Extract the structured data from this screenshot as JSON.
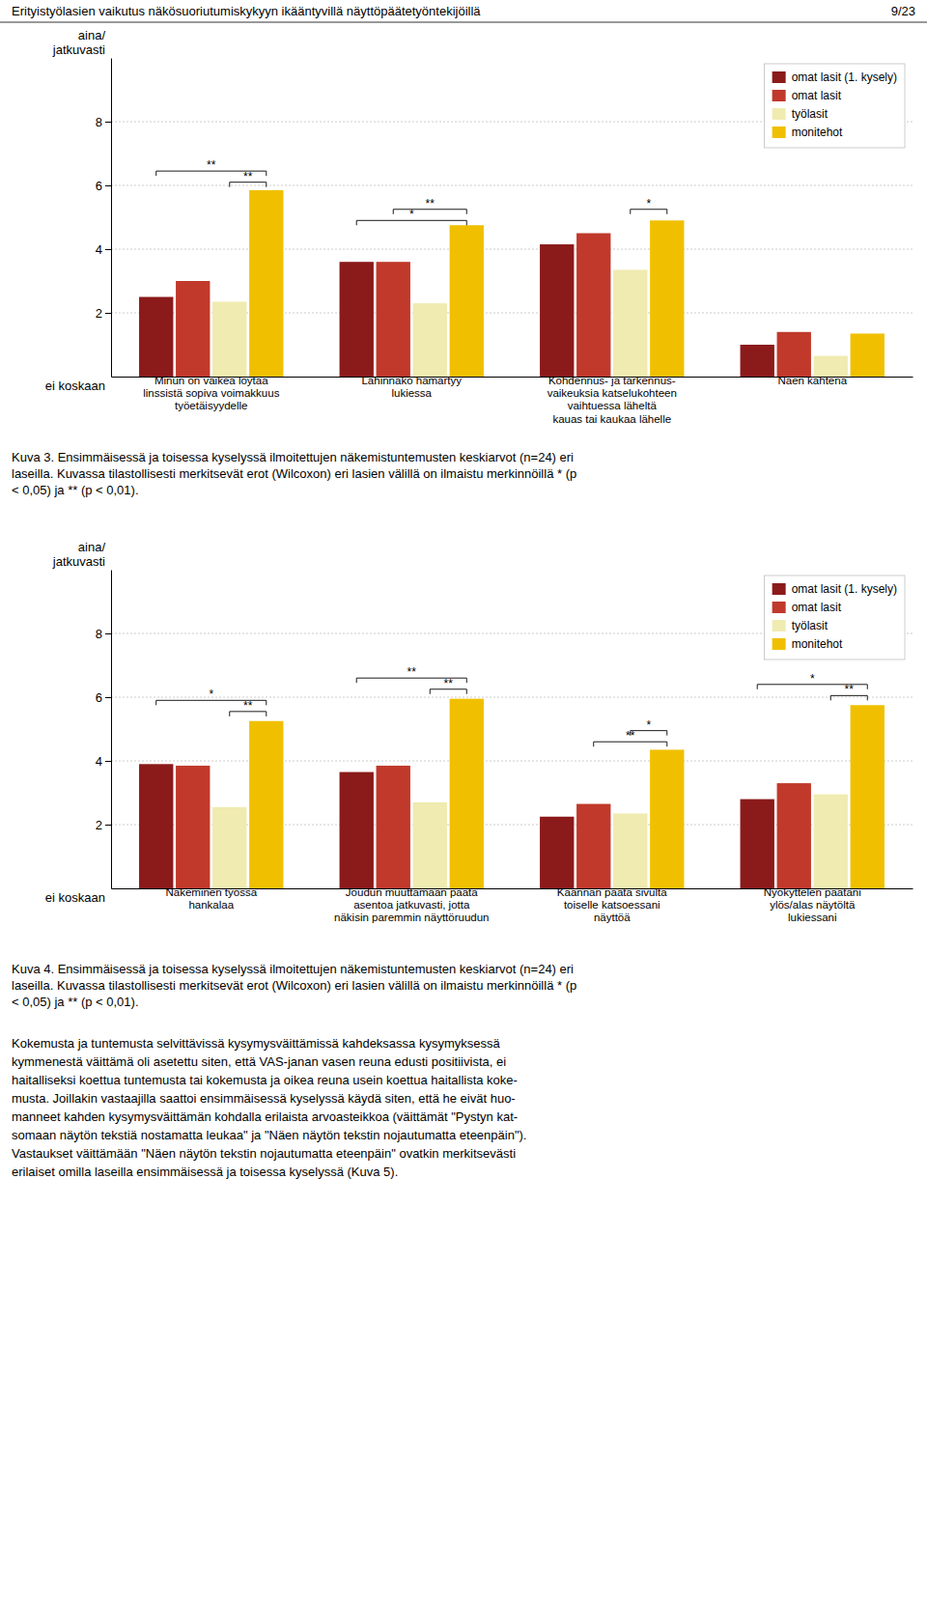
{
  "header": "Erityistyölasien vaikutus näkösuoriutumiskykyyn ikääntyvillä näyttöpäätetyöntekijöillä",
  "page_number": "9/23",
  "chart_data": [
    {
      "type": "bar",
      "categories": [
        "Minun on vaikea löytää\nlinssistä sopiva voimakkuus\ntyöetäisyydelle",
        "Lähinnäkö hämärtyy\nlukiessa",
        "Kohdennus- ja tarkennus-\nvaikeuksia katselukohteen\nvaihtuessa läheltä\nkauas tai kaukaa lähelle",
        "Näen kahtena"
      ],
      "series": [
        {
          "name": "omat lasit (1. kysely)",
          "color": "#8B1A1A",
          "values": [
            2.5,
            3.6,
            4.15,
            1.0
          ]
        },
        {
          "name": "omat lasit",
          "color": "#C0392B",
          "values": [
            3.0,
            3.6,
            4.5,
            1.4
          ]
        },
        {
          "name": "työlasit",
          "color": "#F0EBB0",
          "values": [
            2.35,
            2.3,
            3.35,
            0.65
          ]
        },
        {
          "name": "monitehot",
          "color": "#F0C000",
          "values": [
            5.85,
            4.75,
            4.9,
            1.35
          ]
        }
      ],
      "ylim": [
        0,
        10
      ],
      "yticks": [
        2,
        4,
        6,
        8
      ],
      "grid": true,
      "legend": "upper right",
      "annotations": [
        {
          "text": "aina/\njatkuvasti",
          "y": 10
        },
        {
          "text": "ei koskaan",
          "y": 0
        },
        {
          "text": "**",
          "y": 6.45,
          "category": 0,
          "series": [
            0,
            3
          ]
        },
        {
          "text": "**",
          "y": 6.1,
          "category": 0,
          "series": [
            2,
            3
          ]
        },
        {
          "text": "**",
          "y": 5.25,
          "category": 1,
          "series": [
            1,
            3
          ]
        },
        {
          "text": "*",
          "y": 4.9,
          "category": 1,
          "series": [
            0,
            3
          ]
        },
        {
          "text": "*",
          "y": 5.25,
          "category": 2,
          "series": [
            2,
            3
          ]
        }
      ],
      "caption": "Kuva 3. Ensimmäisessä ja toisessa kyselyssä ilmoitettujen näkemistuntemusten keskiarvot (n=24) eri\nlaseilla. Kuvassa tilastollisesti merkitsevät erot (Wilcoxon) eri lasien välillä on ilmaistu merkinnöillä * (p\n< 0,05) ja ** (p < 0,01)."
    },
    {
      "type": "bar",
      "categories": [
        "Näkeminen työssä\nhankalaa",
        "Joudun muuttamaan päätä\nasentoa jatkuvasti, jotta\nnäkisin paremmin näyttöruudun",
        "Käännän päätä sivulta\ntoiselle katsoessani\nnäyttöä",
        "Nyökyttelen päätäni\nylös/alas näytöltä\nlukiessani"
      ],
      "series": [
        {
          "name": "omat lasit (1. kysely)",
          "color": "#8B1A1A",
          "values": [
            3.9,
            3.65,
            2.25,
            2.8
          ]
        },
        {
          "name": "omat lasit",
          "color": "#C0392B",
          "values": [
            3.85,
            3.85,
            2.65,
            3.3
          ]
        },
        {
          "name": "työlasit",
          "color": "#F0EBB0",
          "values": [
            2.55,
            2.7,
            2.35,
            2.95
          ]
        },
        {
          "name": "monitehot",
          "color": "#F0C000",
          "values": [
            5.25,
            5.95,
            4.35,
            5.75
          ]
        }
      ],
      "ylim": [
        0,
        10
      ],
      "yticks": [
        2,
        4,
        6,
        8
      ],
      "grid": true,
      "legend": "upper right",
      "annotations": [
        {
          "text": "aina/\njatkuvasti",
          "y": 10
        },
        {
          "text": "ei koskaan",
          "y": 0
        },
        {
          "text": "*",
          "y": 5.9,
          "category": 0,
          "series": [
            0,
            3
          ]
        },
        {
          "text": "**",
          "y": 5.55,
          "category": 0,
          "series": [
            2,
            3
          ]
        },
        {
          "text": "**",
          "y": 6.6,
          "category": 1,
          "series": [
            0,
            3
          ]
        },
        {
          "text": "**",
          "y": 6.25,
          "category": 1,
          "series": [
            2,
            3
          ]
        },
        {
          "text": "*",
          "y": 4.95,
          "category": 2,
          "series": [
            2,
            3
          ]
        },
        {
          "text": "**",
          "y": 4.6,
          "category": 2,
          "series": [
            1,
            3
          ]
        },
        {
          "text": "*",
          "y": 6.4,
          "category": 3,
          "series": [
            0,
            3
          ]
        },
        {
          "text": "**",
          "y": 6.05,
          "category": 3,
          "series": [
            2,
            3
          ]
        }
      ],
      "caption": "Kuva 4. Ensimmäisessä ja toisessa kyselyssä ilmoitettujen näkemistuntemusten keskiarvot (n=24) eri\nlaseilla. Kuvassa tilastollisesti merkitsevät erot (Wilcoxon) eri lasien välillä on ilmaistu merkinnöillä * (p\n< 0,05) ja ** (p < 0,01)."
    }
  ],
  "body_text": [
    "Kokemusta ja tuntemusta selvittävissä kysymysväittämissä kahdeksassa kysymyksessä",
    "kymmenestä väittämä oli asetettu siten, että VAS-janan vasen reuna edusti positiivista, ei",
    "haitalliseksi koettua tuntemusta tai kokemusta ja oikea reuna usein koettua haitallista koke-",
    "musta. Joillakin vastaajilla saattoi ensimmäisessä kyselyssä käydä siten, että he eivät huo-",
    "manneet kahden kysymysväittämän kohdalla erilaista arvoasteikkoa (väittämät \"Pystyn kat-",
    "somaan näytön tekstiä nostamatta leukaa\" ja \"Näen näytön tekstin nojautumatta eteenpäin\").",
    "Vastaukset väittämään \"Näen näytön tekstin nojautumatta eteenpäin\" ovatkin merkitsevästi",
    "erilaiset omilla laseilla ensimmäisessä ja toisessa kyselyssä (Kuva 5)."
  ]
}
